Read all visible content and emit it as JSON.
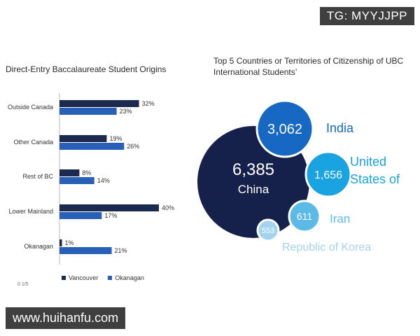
{
  "watermarks": {
    "top": "TG: MYYJJPP",
    "bottom": "www.huihanfu.com"
  },
  "chart_data": [
    {
      "type": "bar",
      "title": "Direct-Entry Baccalaureate Student Origins",
      "categories": [
        "Outside Canada",
        "Other Canada",
        "Rest of BC",
        "Lower Mainland",
        "Okanagan"
      ],
      "series": [
        {
          "name": "Vancouver",
          "values": [
            32,
            19,
            8,
            40,
            1
          ],
          "labels": [
            "32%",
            "19%",
            "8%",
            "40%",
            "1%"
          ],
          "color": "#1b2a4e"
        },
        {
          "name": "Okanagan",
          "values": [
            23,
            26,
            14,
            17,
            21
          ],
          "labels": [
            "23%",
            "26%",
            "14%",
            "17%",
            "21%"
          ],
          "color": "#2760b6"
        }
      ],
      "xlim": [
        0,
        40
      ],
      "orientation": "horizontal",
      "legend": "bottom"
    },
    {
      "type": "bubble",
      "title": "Top 5 Countries or Territories of Citizenship of UBC International Students’",
      "items": [
        {
          "country": "China",
          "value": "6,385",
          "color": "#15214a"
        },
        {
          "country": "India",
          "value": "3,062",
          "color": "#1668c2"
        },
        {
          "country": "United States of",
          "value": "1,656",
          "color": "#19a3e0"
        },
        {
          "country": "Iran",
          "value": "611",
          "color": "#5cbbe6"
        },
        {
          "country": "Republic of Korea",
          "value": "553",
          "color": "#a3d3ef"
        }
      ]
    }
  ],
  "legend": {
    "vancouver": "Vancouver",
    "okanagan": "Okanagan"
  },
  "cut_axis_label": "0 1/5"
}
